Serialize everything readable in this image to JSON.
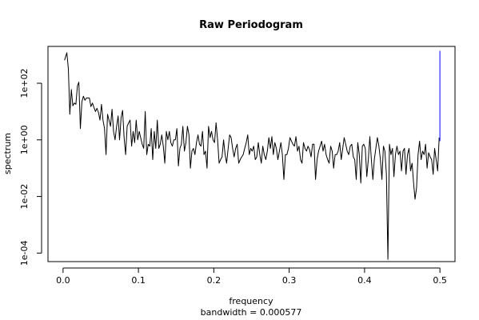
{
  "chart_data": {
    "type": "line",
    "title": "Raw Periodogram",
    "xlabel": "frequency",
    "ylabel": "spectrum",
    "sublabel": "bandwidth = 0.000577",
    "y_scale": "log10",
    "x_range": [
      -0.02,
      0.52
    ],
    "y_range": [
      5e-05,
      2000
    ],
    "x_ticks": [
      {
        "value": 0.0,
        "label": "0.0"
      },
      {
        "value": 0.1,
        "label": "0.1"
      },
      {
        "value": 0.2,
        "label": "0.2"
      },
      {
        "value": 0.3,
        "label": "0.3"
      },
      {
        "value": 0.4,
        "label": "0.4"
      },
      {
        "value": 0.5,
        "label": "0.5"
      }
    ],
    "y_ticks": [
      {
        "value": 0.0001,
        "label": "1e-04"
      },
      {
        "value": 0.01,
        "label": "1e-02"
      },
      {
        "value": 1,
        "label": "1e+00"
      },
      {
        "value": 100,
        "label": "1e+02"
      }
    ],
    "grid": false,
    "series": [
      {
        "color": "#000000",
        "x": [
          0.002,
          0.005,
          0.007,
          0.009,
          0.011,
          0.013,
          0.015,
          0.017,
          0.019,
          0.021,
          0.023,
          0.025,
          0.027,
          0.029,
          0.031,
          0.033,
          0.035,
          0.037,
          0.039,
          0.041,
          0.043,
          0.045,
          0.047,
          0.049,
          0.051,
          0.053,
          0.055,
          0.057,
          0.059,
          0.061,
          0.063,
          0.065,
          0.067,
          0.069,
          0.071,
          0.073,
          0.075,
          0.077,
          0.079,
          0.081,
          0.083,
          0.085,
          0.087,
          0.089,
          0.091,
          0.093,
          0.095,
          0.097,
          0.099,
          0.101,
          0.103,
          0.105,
          0.107,
          0.109,
          0.111,
          0.113,
          0.115,
          0.117,
          0.119,
          0.121,
          0.123,
          0.125,
          0.127,
          0.129,
          0.131,
          0.133,
          0.135,
          0.137,
          0.139,
          0.141,
          0.143,
          0.145,
          0.147,
          0.149,
          0.151,
          0.153,
          0.155,
          0.157,
          0.159,
          0.161,
          0.163,
          0.165,
          0.167,
          0.169,
          0.171,
          0.173,
          0.175,
          0.177,
          0.179,
          0.181,
          0.183,
          0.185,
          0.187,
          0.189,
          0.191,
          0.193,
          0.195,
          0.197,
          0.199,
          0.201,
          0.203,
          0.205,
          0.207,
          0.209,
          0.211,
          0.213,
          0.215,
          0.217,
          0.219,
          0.221,
          0.223,
          0.225,
          0.227,
          0.229,
          0.231,
          0.233,
          0.235,
          0.237,
          0.239,
          0.241,
          0.243,
          0.245,
          0.247,
          0.249,
          0.251,
          0.253,
          0.255,
          0.257,
          0.259,
          0.261,
          0.263,
          0.265,
          0.267,
          0.269,
          0.271,
          0.273,
          0.275,
          0.277,
          0.279,
          0.281,
          0.283,
          0.285,
          0.287,
          0.289,
          0.291,
          0.293,
          0.295,
          0.297,
          0.299,
          0.301,
          0.303,
          0.305,
          0.307,
          0.309,
          0.311,
          0.313,
          0.315,
          0.317,
          0.319,
          0.321,
          0.323,
          0.325,
          0.327,
          0.329,
          0.331,
          0.333,
          0.335,
          0.337,
          0.339,
          0.341,
          0.343,
          0.345,
          0.347,
          0.349,
          0.351,
          0.353,
          0.355,
          0.357,
          0.359,
          0.361,
          0.363,
          0.365,
          0.367,
          0.369,
          0.371,
          0.373,
          0.375,
          0.377,
          0.379,
          0.381,
          0.383,
          0.385,
          0.387,
          0.389,
          0.391,
          0.393,
          0.395,
          0.397,
          0.399,
          0.401,
          0.403,
          0.405,
          0.407,
          0.409,
          0.411,
          0.413,
          0.415,
          0.417,
          0.419,
          0.421,
          0.423,
          0.425,
          0.427,
          0.429,
          0.431,
          0.433,
          0.435,
          0.437,
          0.439,
          0.441,
          0.443,
          0.445,
          0.447,
          0.449,
          0.451,
          0.453,
          0.455,
          0.457,
          0.459,
          0.461,
          0.463,
          0.465,
          0.467,
          0.469,
          0.471,
          0.473,
          0.475,
          0.477,
          0.479,
          0.481,
          0.483,
          0.485,
          0.487,
          0.489,
          0.491,
          0.493,
          0.495,
          0.497,
          0.499
        ],
        "y": [
          650,
          1200,
          320,
          8,
          60,
          16,
          20,
          18,
          80,
          110,
          2.5,
          22,
          35,
          25,
          30,
          30,
          30,
          15,
          20,
          14,
          10,
          13,
          9,
          5,
          18,
          5,
          2.5,
          0.3,
          8,
          5,
          3,
          12,
          2,
          1,
          3,
          7,
          1,
          6,
          11,
          1.2,
          0.3,
          3,
          4,
          5,
          0.6,
          2,
          0.8,
          5,
          1,
          2,
          1.2,
          0.7,
          0.5,
          10,
          0.3,
          0.7,
          0.6,
          2.5,
          0.2,
          2,
          0.5,
          5,
          0.5,
          0.7,
          1.5,
          0.6,
          0.15,
          2,
          1,
          2,
          0.8,
          0.6,
          1,
          1,
          2.5,
          0.12,
          0.5,
          0.7,
          3,
          0.4,
          0.8,
          3,
          1.5,
          0.1,
          0.4,
          0.5,
          0.3,
          0.8,
          1.5,
          0.7,
          0.6,
          2,
          0.3,
          0.4,
          0.1,
          3,
          1.2,
          2,
          1,
          0.8,
          4,
          1,
          0.15,
          0.2,
          0.25,
          1,
          0.3,
          0.15,
          0.5,
          1.5,
          1.2,
          0.5,
          0.25,
          0.5,
          0.7,
          0.15,
          0.2,
          0.25,
          0.3,
          0.5,
          0.8,
          1.5,
          0.3,
          0.5,
          0.4,
          0.6,
          0.2,
          0.25,
          0.8,
          0.3,
          0.15,
          0.6,
          0.3,
          0.2,
          0.4,
          1.2,
          0.5,
          1.3,
          0.3,
          0.8,
          0.5,
          0.2,
          0.4,
          0.8,
          0.3,
          0.04,
          0.3,
          0.3,
          0.5,
          1.2,
          0.9,
          0.7,
          0.6,
          1.3,
          0.4,
          0.6,
          0.2,
          0.15,
          0.8,
          0.5,
          0.4,
          0.6,
          0.45,
          0.25,
          0.7,
          0.7,
          0.04,
          0.2,
          0.4,
          0.6,
          0.9,
          0.4,
          0.7,
          0.3,
          0.2,
          0.15,
          0.6,
          0.4,
          0.1,
          0.3,
          0.3,
          0.4,
          0.8,
          0.2,
          0.5,
          1.2,
          0.7,
          0.4,
          0.3,
          0.6,
          0.7,
          0.25,
          0.2,
          0.04,
          0.8,
          0.3,
          0.03,
          0.6,
          0.7,
          0.5,
          0.05,
          0.2,
          1.3,
          0.2,
          0.04,
          0.2,
          0.5,
          1.2,
          0.6,
          0.2,
          0.04,
          0.6,
          0.4,
          0.06,
          6e-05,
          0.7,
          0.3,
          0.5,
          0.05,
          0.3,
          0.6,
          0.3,
          0.4,
          0.08,
          0.4,
          0.5,
          0.06,
          0.3,
          0.5,
          0.08,
          0.15,
          0.03,
          0.008,
          0.02,
          0.3,
          0.9,
          0.2,
          0.4,
          0.3,
          0.7,
          0.1,
          0.35,
          0.25,
          0.2,
          0.06,
          0.5,
          0.2,
          0.08,
          1.2
        ]
      },
      {
        "color": "#0000ff",
        "x": [
          0.5,
          0.5
        ],
        "y": [
          0.9,
          1400
        ]
      }
    ]
  }
}
